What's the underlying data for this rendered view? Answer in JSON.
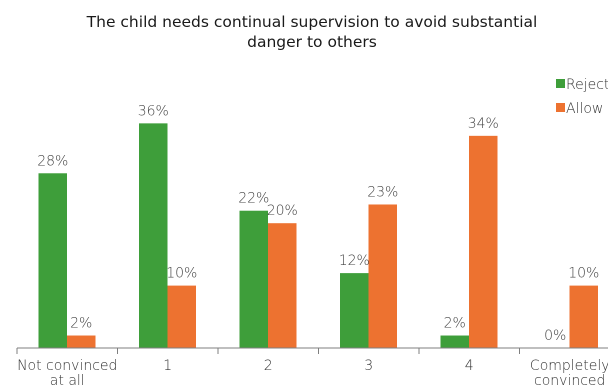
{
  "chart_data": {
    "type": "bar",
    "title": "The child needs continual supervision to avoid substantial danger to others",
    "categories": [
      "Not convinced at all",
      "1",
      "2",
      "3",
      "4",
      "Completely convinced"
    ],
    "series": [
      {
        "name": "Reject",
        "color": "#3E9E3A",
        "values": [
          28,
          36,
          22,
          12,
          2,
          0
        ],
        "labels": [
          "28%",
          "36%",
          "22%",
          "12%",
          "2%",
          "0%"
        ]
      },
      {
        "name": "Allow",
        "color": "#ED7230",
        "values": [
          2,
          10,
          20,
          23,
          34,
          10
        ],
        "labels": [
          "2%",
          "10%",
          "20%",
          "23%",
          "34%",
          "10%"
        ]
      }
    ],
    "ylim": [
      0,
      40
    ],
    "grid": false,
    "legend_position": "top-right",
    "xlabel": "",
    "ylabel": ""
  }
}
